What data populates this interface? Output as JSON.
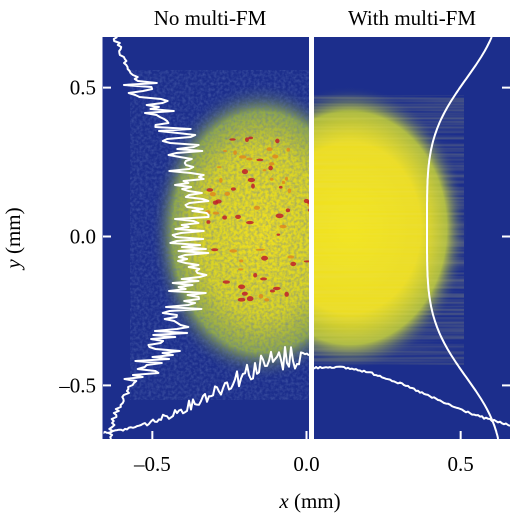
{
  "chart_data": {
    "type": "heatmap",
    "panels": [
      {
        "title": "No multi-FM",
        "description_values": {
          "x_range": [
            -0.66,
            0.0
          ]
        }
      },
      {
        "title": "With multi-FM",
        "description_values": {
          "x_range": [
            0.0,
            0.66
          ]
        }
      }
    ],
    "xlabel_var": "x",
    "xlabel_unit": " (mm)",
    "ylabel_var": "y",
    "ylabel_unit": " (mm)",
    "x_ticks": [
      {
        "value": -0.5,
        "label": "–0.5"
      },
      {
        "value": 0.0,
        "label": "0.0"
      },
      {
        "value": 0.5,
        "label": "0.5"
      }
    ],
    "y_ticks": [
      {
        "value": 0.5,
        "label": "0.5"
      },
      {
        "value": 0.0,
        "label": "0.0"
      },
      {
        "value": -0.5,
        "label": "–0.5"
      }
    ],
    "xlim": [
      -0.66,
      0.66
    ],
    "ylim": [
      -0.68,
      0.67
    ],
    "grid": false,
    "colormap": [
      "#1c2e8c",
      "#3a58a0",
      "#9fb44a",
      "#e6dc28",
      "#f2e11e",
      "#e08a1c",
      "#c0202a"
    ],
    "profile_color": "#ffffff",
    "divider_color": "#ffffff"
  }
}
